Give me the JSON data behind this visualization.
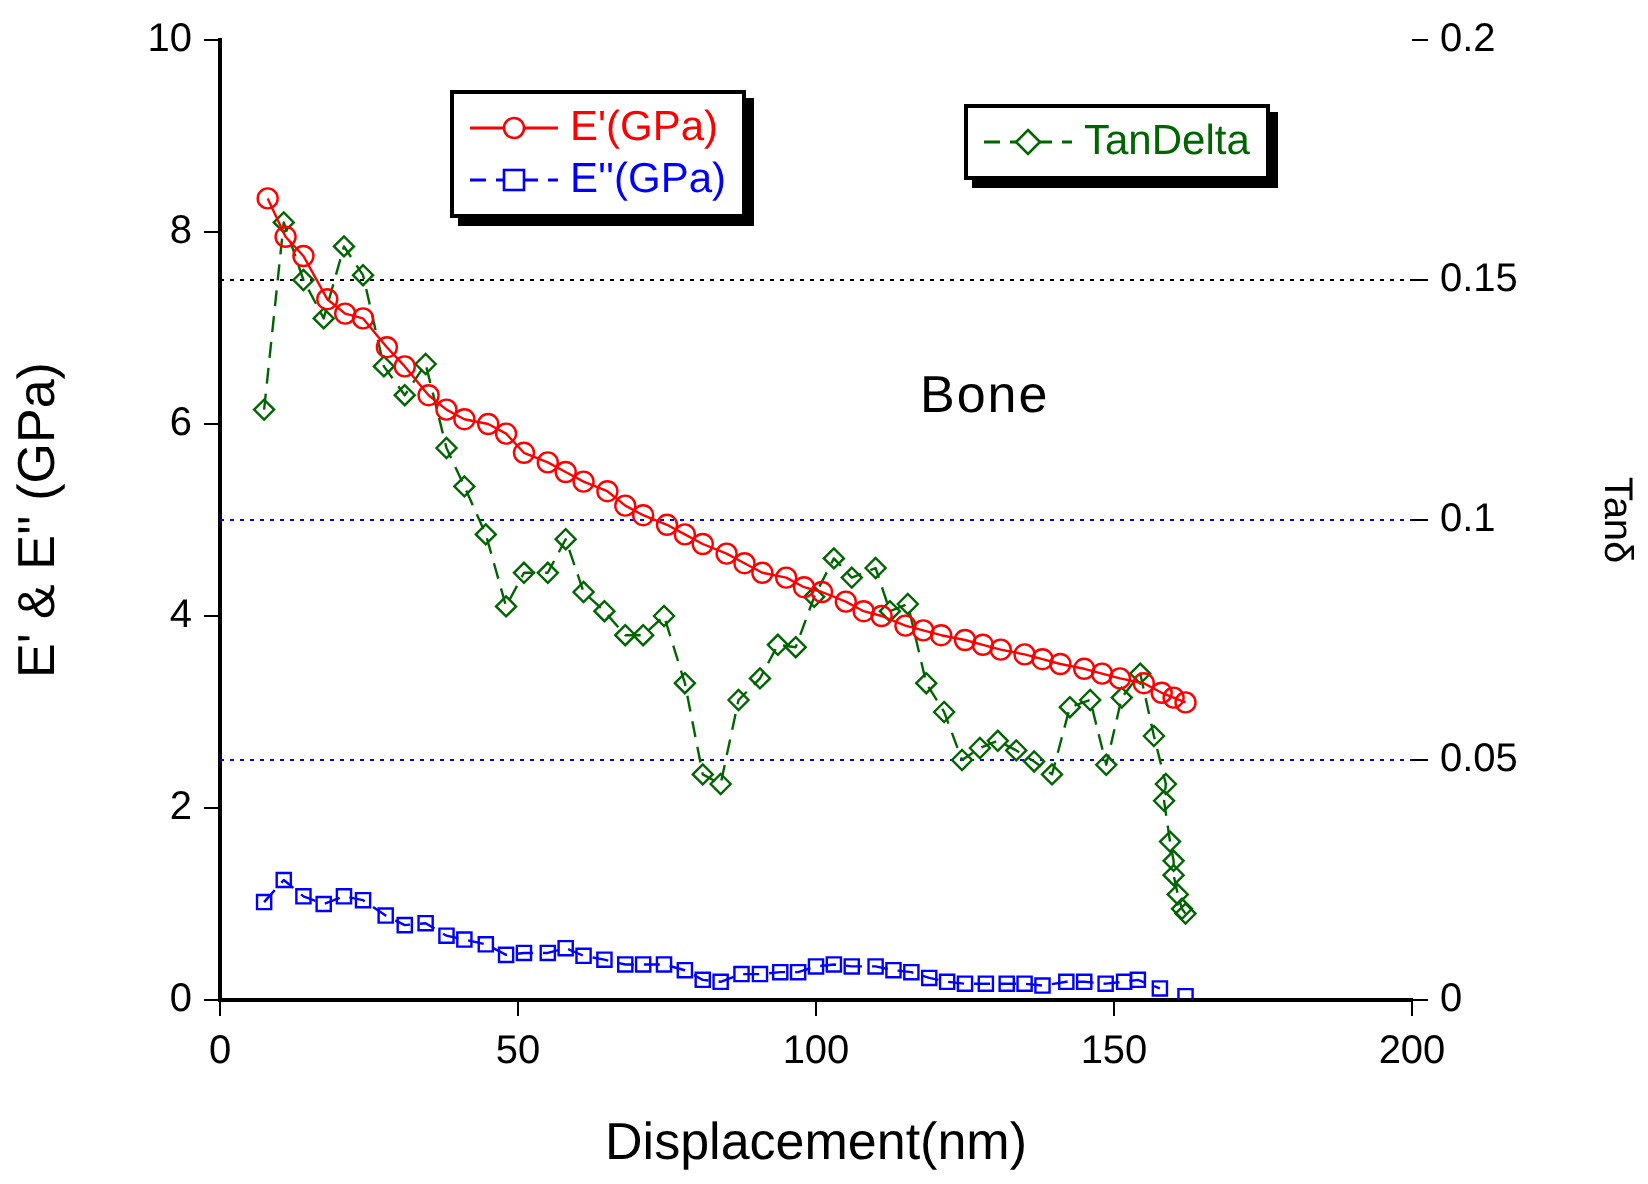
{
  "chart_data": {
    "type": "line",
    "xlabel": "Displacement(nm)",
    "ylabel": "E' & E'' (GPa)",
    "y2label": "Tanδ",
    "legend": "top",
    "grid": false,
    "xlim": [
      0,
      200
    ],
    "xticks": [
      0,
      50,
      100,
      150,
      200
    ],
    "ylim": [
      0,
      10
    ],
    "yticks": [
      0,
      2,
      4,
      6,
      8,
      10
    ],
    "y2lim": [
      0,
      0.2
    ],
    "y2ticks": [
      0,
      0.05,
      0.1,
      0.15,
      0.2
    ],
    "annotations": [
      "Bone"
    ],
    "ref_lines": [
      {
        "axis": "y2",
        "value": 0.05,
        "color": "#0000ff",
        "line_style": "dotted"
      },
      {
        "axis": "y2",
        "value": 0.1,
        "color": "#0000ff",
        "line_style": "dotted"
      },
      {
        "axis": "y2",
        "value": 0.15,
        "color": "#000000",
        "line_style": "dotted"
      }
    ],
    "series": [
      {
        "name": "E'(GPa)",
        "color": "#ff0000",
        "marker": "circle",
        "line_style": "solid",
        "x": [
          8,
          11,
          14,
          18,
          21,
          24,
          28,
          31,
          35,
          38,
          41,
          45,
          48,
          51,
          55,
          58,
          61,
          65,
          68,
          71,
          75,
          78,
          81,
          85,
          88,
          91,
          95,
          98,
          101,
          105,
          108,
          111,
          115,
          118,
          121,
          125,
          128,
          131,
          135,
          138,
          141,
          145,
          148,
          151,
          155,
          158,
          160,
          162
        ],
        "values": [
          8.35,
          7.95,
          7.75,
          7.3,
          7.15,
          7.1,
          6.8,
          6.6,
          6.3,
          6.15,
          6.05,
          6.0,
          5.9,
          5.7,
          5.6,
          5.5,
          5.4,
          5.3,
          5.15,
          5.05,
          4.95,
          4.85,
          4.75,
          4.65,
          4.55,
          4.45,
          4.4,
          4.3,
          4.25,
          4.15,
          4.05,
          4.0,
          3.9,
          3.85,
          3.8,
          3.75,
          3.7,
          3.65,
          3.6,
          3.55,
          3.5,
          3.45,
          3.4,
          3.35,
          3.3,
          3.2,
          3.15,
          3.1
        ]
      },
      {
        "name": "E''(GPa)",
        "color": "#0000ff",
        "marker": "square",
        "line_style": "dashed",
        "x": [
          7.4,
          10.7,
          14,
          17.4,
          20.8,
          24,
          27.8,
          31,
          34.5,
          38,
          41,
          44.6,
          48,
          51,
          55,
          58,
          61,
          64.5,
          68,
          71,
          74.5,
          78,
          81,
          84,
          87.5,
          90.6,
          94,
          97,
          100,
          103,
          106,
          110,
          113,
          116,
          119,
          122,
          125,
          128.5,
          132,
          135,
          138,
          142,
          145,
          148.6,
          151.7,
          154,
          157.7,
          160,
          162
        ],
        "values": [
          1.02,
          1.25,
          1.08,
          1.0,
          1.08,
          1.04,
          0.88,
          0.78,
          0.8,
          0.67,
          0.63,
          0.58,
          0.47,
          0.49,
          0.49,
          0.54,
          0.46,
          0.42,
          0.37,
          0.37,
          0.37,
          0.31,
          0.21,
          0.19,
          0.27,
          0.27,
          0.29,
          0.29,
          0.35,
          0.37,
          0.35,
          0.35,
          0.31,
          0.29,
          0.23,
          0.19,
          0.17,
          0.17,
          0.17,
          0.17,
          0.15,
          0.19,
          0.19,
          0.17,
          0.19,
          0.21,
          0.12,
          null,
          0.04
        ]
      },
      {
        "name": "TanDelta",
        "color": "#006400",
        "marker": "diamond",
        "line_style": "dashed",
        "axis": "y2",
        "x": [
          7.4,
          10.7,
          14,
          17.4,
          20.8,
          24,
          27.5,
          31,
          34.5,
          38,
          41,
          44.6,
          48,
          51,
          55,
          58,
          61,
          64.5,
          68,
          71,
          74.5,
          78,
          81,
          84,
          87,
          90.6,
          93.6,
          96.6,
          99.7,
          103,
          106,
          110,
          112.4,
          115.4,
          118.5,
          121.5,
          124.5,
          127.5,
          130.5,
          133.6,
          136.6,
          139.6,
          142.6,
          146,
          148.7,
          151.3,
          154.4,
          156.7,
          158.7,
          158.4,
          159.4,
          160,
          160,
          160.7,
          161.4,
          162
        ],
        "values": [
          0.123,
          0.162,
          0.15,
          0.142,
          0.157,
          0.151,
          0.132,
          0.126,
          0.1325,
          0.115,
          0.107,
          0.097,
          0.082,
          0.089,
          0.089,
          0.096,
          0.085,
          0.081,
          0.076,
          0.076,
          0.08,
          0.066,
          0.047,
          0.045,
          0.0625,
          0.067,
          0.074,
          0.0735,
          0.084,
          0.092,
          0.088,
          0.09,
          0.081,
          0.0825,
          0.066,
          0.06,
          0.05,
          0.0525,
          0.054,
          0.052,
          0.0497,
          0.047,
          0.061,
          0.0625,
          0.049,
          0.063,
          0.068,
          0.055,
          0.045,
          0.0415,
          0.033,
          0.029,
          0.026,
          0.022,
          0.019,
          0.018
        ]
      }
    ]
  }
}
